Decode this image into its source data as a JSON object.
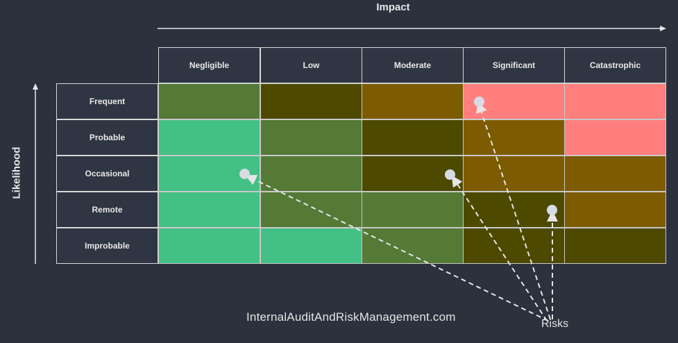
{
  "axes": {
    "impact_label": "Impact",
    "likelihood_label": "Likelihood"
  },
  "columns": [
    "Negligible",
    "Low",
    "Moderate",
    "Significant",
    "Catastrophic"
  ],
  "rows": [
    {
      "label": "Frequent",
      "colors": [
        "#547a36",
        "#4d4a00",
        "#7d5b00",
        "#ff7f7f",
        "#ff7f7f"
      ]
    },
    {
      "label": "Probable",
      "colors": [
        "#43c085",
        "#547a36",
        "#4d4a00",
        "#7d5b00",
        "#ff7f7f"
      ]
    },
    {
      "label": "Occasional",
      "colors": [
        "#43c085",
        "#547a36",
        "#4d4a00",
        "#7d5b00",
        "#7d5b00"
      ]
    },
    {
      "label": "Remote",
      "colors": [
        "#43c085",
        "#547a36",
        "#547a36",
        "#4d4a00",
        "#7d5b00"
      ]
    },
    {
      "label": "Improbable",
      "colors": [
        "#43c085",
        "#43c085",
        "#547a36",
        "#4d4a00",
        "#4d4a00"
      ]
    }
  ],
  "risks_label": "Risks",
  "footer_text": "InternalAuditAndRiskManagement.com"
}
